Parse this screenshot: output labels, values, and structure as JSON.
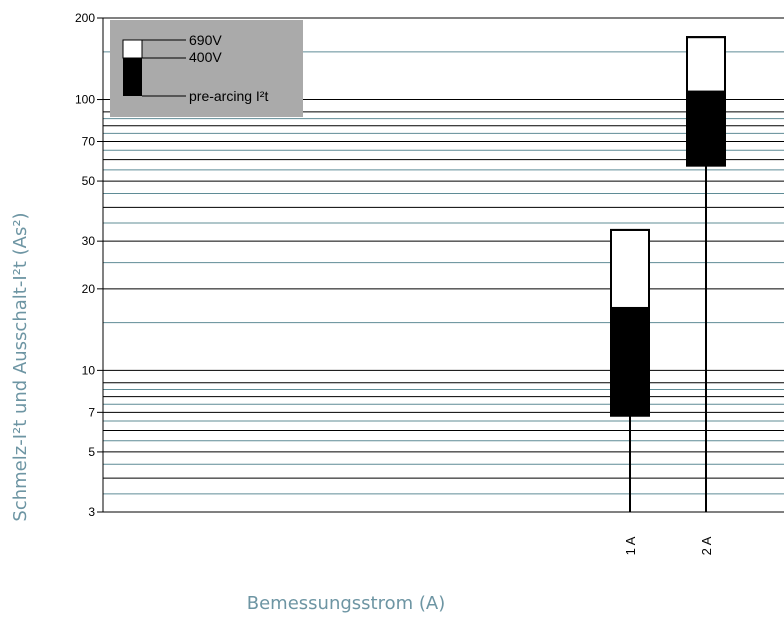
{
  "chart_data": {
    "type": "bar",
    "subtype": "floating-range",
    "y_scale": "log",
    "ylim": [
      3,
      200
    ],
    "ytick_labels": [
      "200",
      "100",
      "70",
      "50",
      "30",
      "20",
      "10",
      "7",
      "5",
      "3"
    ],
    "ytick_values": [
      200,
      100,
      70,
      50,
      30,
      20,
      10,
      7,
      5,
      3
    ],
    "ylabel": "Schmelz-I²t und Ausschalt-I²t (As²)",
    "xlabel": "Bemessungsstrom (A)",
    "categories": [
      "1 A",
      "2 A"
    ],
    "series": [
      {
        "name": "pre-arcing I²t",
        "low": [
          6.8,
          57
        ],
        "high": [
          17,
          107
        ]
      },
      {
        "name": "400V",
        "low": [
          17,
          107
        ],
        "high": [
          33,
          170
        ]
      },
      {
        "name": "690V",
        "low": [
          17,
          107
        ],
        "high": [
          33,
          170
        ]
      }
    ],
    "legend": {
      "placement": "top-left",
      "entries": [
        "690V",
        "400V",
        "pre-arcing I²t"
      ]
    },
    "colors": {
      "gridline_major": "#000000",
      "gridline_minor": "#5f8c96",
      "axis_title": "#6d95a3",
      "legend_bg": "#aaaaaa",
      "bar_fill_dark": "#000000",
      "bar_fill_light": "#ffffff"
    }
  }
}
